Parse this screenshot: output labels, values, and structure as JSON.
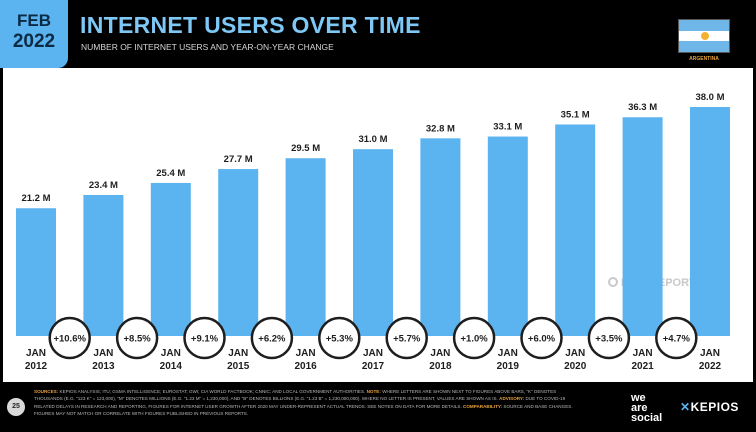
{
  "header": {
    "date_month": "FEB",
    "date_year": "2022",
    "title": "INTERNET USERS OVER TIME",
    "subtitle": "NUMBER OF INTERNET USERS AND YEAR-ON-YEAR CHANGE",
    "country": "ARGENTINA"
  },
  "watermark": "DATAREPORTAL",
  "footer": {
    "page_number": "25",
    "sources_label": "SOURCES:",
    "sources_text": "KEPIOS ANALYSIS; ITU; GSMA INTELLIGENCE; EUROSTAT; GWI; CIA WORLD FACTBOOK; CNNIC; AND LOCAL GOVERNMENT AUTHORITIES.",
    "note_label": "NOTE:",
    "note_text": "WHERE LETTERS ARE SHOWN NEXT TO FIGURES ABOVE BARS, \"K\" DENOTES THOUSANDS (E.G. \"123 K\" = 123,000), \"M\" DENOTES MILLIONS (E.G. \"1.23 M\" = 1,230,000), AND \"B\" DENOTES BILLIONS (E.G. \"1.23 B\" = 1,230,000,000). WHERE NO LETTER IS PRESENT, VALUES ARE SHOWN AS IS.",
    "advisory_label": "ADVISORY:",
    "advisory_text": "DUE TO COVID-19 RELATED DELAYS IN RESEARCH AND REPORTING, FIGURES FOR INTERNET USER GROWTH AFTER 2020 MAY UNDER-REPRESENT ACTUAL TRENDS. SEE NOTES ON DATA FOR MORE DETAILS.",
    "comparability_label": "COMPARABILITY:",
    "comparability_text": "SOURCE AND BASE CHANGES. FIGURES MAY NOT MATCH OR CORRELATE WITH FIGURES PUBLISHED IN PREVIOUS REPORTS.",
    "logo_line1": "we",
    "logo_line2": "are",
    "logo_line3": "social",
    "kepios": "KEPIOS"
  },
  "colors": {
    "bar": "#5bb3ef",
    "title": "#7ec8f6",
    "accent": "#e8a23a"
  },
  "chart_data": {
    "type": "bar",
    "categories": [
      "JAN 2012",
      "JAN 2013",
      "JAN 2014",
      "JAN 2015",
      "JAN 2016",
      "JAN 2017",
      "JAN 2018",
      "JAN 2019",
      "JAN 2020",
      "JAN 2021",
      "JAN 2022"
    ],
    "category_lines": [
      [
        "JAN",
        "2012"
      ],
      [
        "JAN",
        "2013"
      ],
      [
        "JAN",
        "2014"
      ],
      [
        "JAN",
        "2015"
      ],
      [
        "JAN",
        "2016"
      ],
      [
        "JAN",
        "2017"
      ],
      [
        "JAN",
        "2018"
      ],
      [
        "JAN",
        "2019"
      ],
      [
        "JAN",
        "2020"
      ],
      [
        "JAN",
        "2021"
      ],
      [
        "JAN",
        "2022"
      ]
    ],
    "values": [
      21.2,
      23.4,
      25.4,
      27.7,
      29.5,
      31.0,
      32.8,
      33.1,
      35.1,
      36.3,
      38.0
    ],
    "value_labels": [
      "21.2 M",
      "23.4 M",
      "25.4 M",
      "27.7 M",
      "29.5 M",
      "31.0 M",
      "32.8 M",
      "33.1 M",
      "35.1 M",
      "36.3 M",
      "38.0 M"
    ],
    "changes": [
      "+10.6%",
      "+8.5%",
      "+9.1%",
      "+6.2%",
      "+5.3%",
      "+5.7%",
      "+1.0%",
      "+6.0%",
      "+3.5%",
      "+4.7%"
    ],
    "title": "INTERNET USERS OVER TIME",
    "subtitle": "NUMBER OF INTERNET USERS AND YEAR-ON-YEAR CHANGE",
    "unit": "M",
    "ylim": [
      0,
      38.0
    ],
    "grid": false,
    "legend": "none"
  }
}
